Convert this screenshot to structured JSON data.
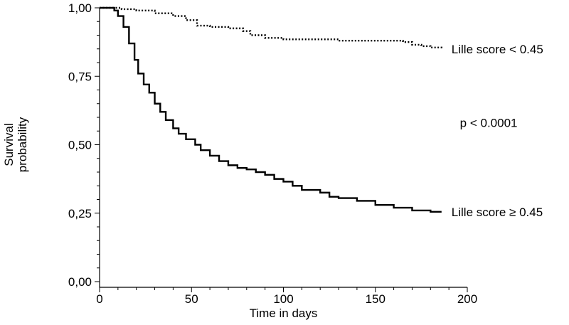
{
  "chart_data": {
    "type": "line",
    "title": "",
    "xlabel": "Time in days",
    "ylabel_lines": [
      "Survival",
      "probability"
    ],
    "xlim": [
      0,
      200
    ],
    "ylim": [
      0,
      1
    ],
    "x_ticks": [
      0,
      50,
      100,
      150,
      200
    ],
    "x_tick_labels": [
      "0",
      "50",
      "100",
      "150",
      "200"
    ],
    "y_ticks": [
      0,
      0.25,
      0.5,
      0.75,
      1.0
    ],
    "y_tick_labels": [
      "0,00",
      "0,25",
      "0,50",
      "0,75",
      "1,00"
    ],
    "grid": false,
    "annotations": [
      {
        "text": "p < 0.0001",
        "x": 196,
        "y": 0.565
      }
    ],
    "series": [
      {
        "name": "Lille score < 0.45",
        "style": "dotted",
        "color": "#000000",
        "x": [
          0,
          9,
          12,
          20,
          30,
          40,
          47,
          53,
          60,
          70,
          75,
          78,
          82,
          90,
          100,
          115,
          130,
          150,
          165,
          170,
          175,
          180,
          186
        ],
        "y": [
          1.0,
          1.0,
          0.995,
          0.99,
          0.98,
          0.97,
          0.955,
          0.935,
          0.93,
          0.925,
          0.925,
          0.915,
          0.9,
          0.89,
          0.885,
          0.885,
          0.88,
          0.88,
          0.875,
          0.865,
          0.86,
          0.855,
          0.85
        ]
      },
      {
        "name": "Lille score ≥ 0.45",
        "style": "solid",
        "color": "#000000",
        "x": [
          0,
          8,
          10,
          13,
          16,
          19,
          21,
          24,
          27,
          30,
          33,
          36,
          40,
          43,
          47,
          52,
          55,
          60,
          65,
          70,
          75,
          80,
          85,
          90,
          95,
          100,
          105,
          110,
          115,
          120,
          125,
          130,
          140,
          150,
          160,
          170,
          175,
          180,
          186
        ],
        "y": [
          1.0,
          0.99,
          0.97,
          0.93,
          0.87,
          0.81,
          0.76,
          0.72,
          0.69,
          0.65,
          0.62,
          0.59,
          0.56,
          0.54,
          0.52,
          0.5,
          0.48,
          0.46,
          0.44,
          0.425,
          0.415,
          0.41,
          0.4,
          0.39,
          0.375,
          0.365,
          0.35,
          0.335,
          0.335,
          0.325,
          0.31,
          0.305,
          0.295,
          0.28,
          0.27,
          0.26,
          0.26,
          0.255,
          0.255
        ]
      }
    ]
  }
}
